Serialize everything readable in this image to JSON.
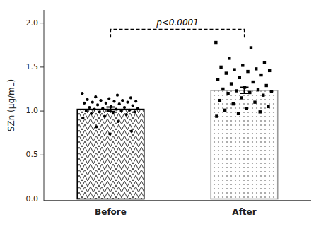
{
  "chart_data": {
    "type": "bar",
    "categories": [
      "Before",
      "After"
    ],
    "values": [
      1.02,
      1.235
    ],
    "errors": [
      0.025,
      0.035
    ],
    "colors": [
      "black",
      "#999999"
    ],
    "points": [
      {
        "marker": "circle",
        "color": "black",
        "values": [
          1.2,
          1.18,
          1.16,
          1.15,
          1.14,
          1.13,
          1.12,
          1.12,
          1.11,
          1.11,
          1.1,
          1.1,
          1.09,
          1.09,
          1.08,
          1.07,
          1.06,
          1.05,
          1.04,
          1.04,
          1.03,
          1.03,
          1.02,
          1.02,
          1.01,
          1.01,
          1.0,
          1.0,
          0.99,
          0.99,
          0.98,
          0.97,
          0.96,
          0.94,
          0.92,
          0.88,
          0.82,
          0.77,
          0.74
        ]
      },
      {
        "marker": "square",
        "color": "black",
        "values": [
          1.78,
          1.72,
          1.6,
          1.55,
          1.52,
          1.5,
          1.48,
          1.47,
          1.46,
          1.45,
          1.43,
          1.41,
          1.38,
          1.36,
          1.33,
          1.31,
          1.29,
          1.27,
          1.25,
          1.24,
          1.23,
          1.22,
          1.21,
          1.2,
          1.18,
          1.15,
          1.12,
          1.1,
          1.08,
          1.05,
          1.03,
          1.01,
          0.99,
          0.97,
          0.94
        ]
      }
    ],
    "annotations": [
      {
        "text": "p<0.0001",
        "y": 1.93
      }
    ],
    "ylabel": "SZn (μg/mL)",
    "ylim": [
      -0.02,
      2.15
    ],
    "yticks": [
      {
        "value": 0.0,
        "label": "0.0"
      },
      {
        "value": 0.5,
        "label": "0.5"
      },
      {
        "value": 1.0,
        "label": "1.0"
      },
      {
        "value": 1.5,
        "label": "1.5"
      },
      {
        "value": 2.0,
        "label": "2.0"
      }
    ],
    "grid": false
  }
}
